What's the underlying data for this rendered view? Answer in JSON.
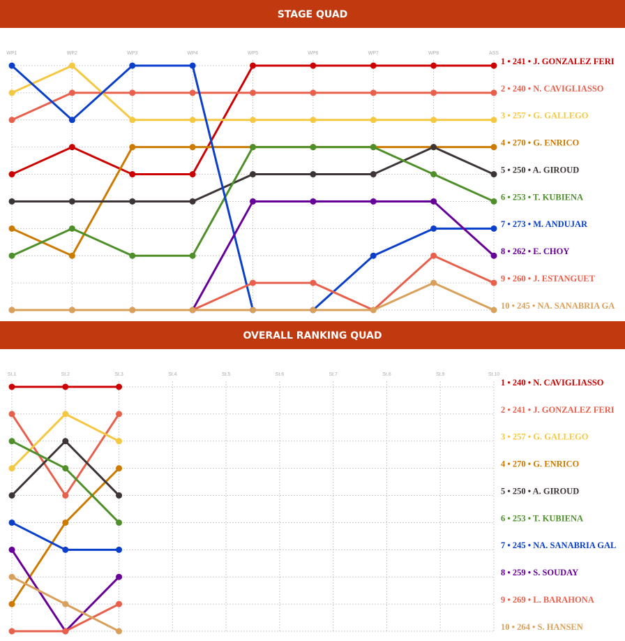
{
  "chart_data": [
    {
      "type": "bump",
      "title": "STAGE QUAD",
      "categories": [
        "WP1",
        "WP2",
        "WP3",
        "WP4",
        "WP5",
        "WP6",
        "WP7",
        "WP8",
        "ASS"
      ],
      "ylim": [
        1,
        10
      ],
      "reversed": true,
      "grid": true,
      "series": [
        {
          "name": "1 • 241 • J. GONZALEZ FERI",
          "color": "#cc0000",
          "values": [
            5,
            4,
            5,
            5,
            1,
            1,
            1,
            1,
            1
          ]
        },
        {
          "name": "2 • 240 • N. CAVIGLIASSO",
          "color": "#e8604c",
          "values": [
            3,
            2,
            2,
            2,
            2,
            2,
            2,
            2,
            2
          ]
        },
        {
          "name": "3 • 257 • G. GALLEGO",
          "color": "#f5c842",
          "values": [
            2,
            1,
            3,
            3,
            3,
            3,
            3,
            3,
            3
          ]
        },
        {
          "name": "4 • 270 • G. ENRICO",
          "color": "#cc7a00",
          "values": [
            7,
            8,
            4,
            4,
            4,
            4,
            4,
            4,
            4
          ]
        },
        {
          "name": "5 • 250 • A. GIROUD",
          "color": "#3d3535",
          "values": [
            6,
            6,
            6,
            6,
            5,
            5,
            5,
            4,
            5
          ]
        },
        {
          "name": "6 • 253 • T. KUBIENA",
          "color": "#4e8f2a",
          "values": [
            8,
            7,
            8,
            8,
            4,
            4,
            4,
            5,
            6
          ]
        },
        {
          "name": "7 • 273 • M. ANDUJAR",
          "color": "#0a3fcc",
          "values": [
            1,
            3,
            1,
            1,
            10,
            10,
            8,
            7,
            7
          ]
        },
        {
          "name": "8 • 262 • E. CHOY",
          "color": "#660099",
          "values": [
            null,
            null,
            null,
            10,
            6,
            6,
            6,
            6,
            8
          ]
        },
        {
          "name": "9 • 260 • J. ESTANGUET",
          "color": "#e8604c",
          "values": [
            10,
            10,
            10,
            10,
            9,
            9,
            10,
            8,
            9
          ]
        },
        {
          "name": "10 • 245 • NA. SANABRIA GA",
          "color": "#d9a05b",
          "values": [
            10,
            10,
            10,
            10,
            10,
            10,
            10,
            9,
            10
          ]
        }
      ]
    },
    {
      "type": "bump",
      "title": "OVERALL RANKING QUAD",
      "categories": [
        "St.1",
        "St.2",
        "St.3",
        "St.4",
        "St.5",
        "St.6",
        "St.7",
        "St.8",
        "St.9",
        "St.10"
      ],
      "ylim": [
        1,
        10
      ],
      "reversed": true,
      "grid": true,
      "series": [
        {
          "name": "1 • 240 • N. CAVIGLIASSO",
          "color": "#cc0000",
          "values": [
            1,
            1,
            1,
            null,
            null,
            null,
            null,
            null,
            null,
            null
          ]
        },
        {
          "name": "2 • 241 • J. GONZALEZ FERI",
          "color": "#e8604c",
          "values": [
            2,
            5,
            2,
            null,
            null,
            null,
            null,
            null,
            null,
            null
          ]
        },
        {
          "name": "3 • 257 • G. GALLEGO",
          "color": "#f5c842",
          "values": [
            4,
            2,
            3,
            null,
            null,
            null,
            null,
            null,
            null,
            null
          ]
        },
        {
          "name": "4 • 270 • G. ENRICO",
          "color": "#cc7a00",
          "values": [
            9,
            6,
            4,
            null,
            null,
            null,
            null,
            null,
            null,
            null
          ]
        },
        {
          "name": "5 • 250 • A. GIROUD",
          "color": "#3d3535",
          "values": [
            5,
            3,
            5,
            null,
            null,
            null,
            null,
            null,
            null,
            null
          ]
        },
        {
          "name": "6 • 253 • T. KUBIENA",
          "color": "#4e8f2a",
          "values": [
            3,
            4,
            6,
            null,
            null,
            null,
            null,
            null,
            null,
            null
          ]
        },
        {
          "name": "7 • 245 • NA. SANABRIA GAL",
          "color": "#0a3fcc",
          "values": [
            6,
            7,
            7,
            null,
            null,
            null,
            null,
            null,
            null,
            null
          ]
        },
        {
          "name": "8 • 259 • S. SOUDAY",
          "color": "#660099",
          "values": [
            7,
            10,
            8,
            null,
            null,
            null,
            null,
            null,
            null,
            null
          ]
        },
        {
          "name": "9 • 269 • L. BARAHONA",
          "color": "#e8604c",
          "values": [
            10,
            10,
            9,
            null,
            null,
            null,
            null,
            null,
            null,
            null
          ]
        },
        {
          "name": "10 • 264 • S. HANSEN",
          "color": "#d9a05b",
          "values": [
            8,
            9,
            10,
            null,
            null,
            null,
            null,
            null,
            null,
            null
          ]
        }
      ]
    }
  ]
}
